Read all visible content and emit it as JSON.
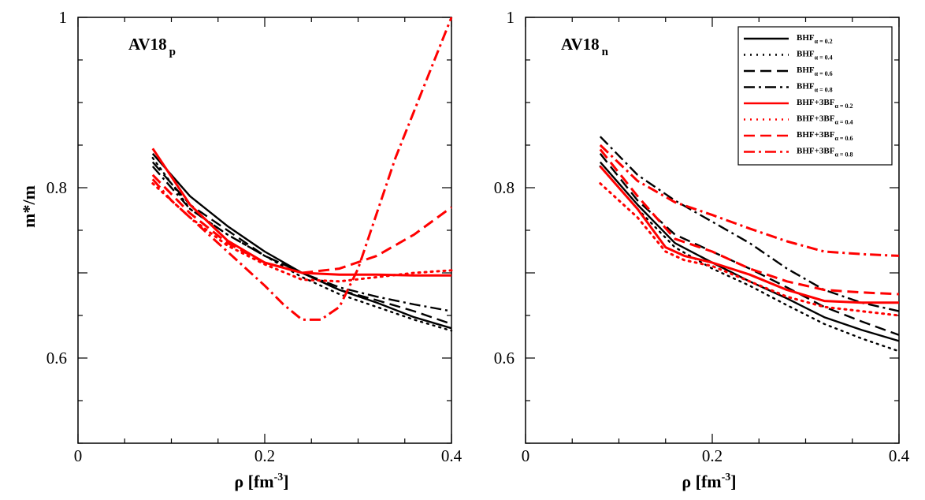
{
  "chart_data": [
    {
      "type": "line",
      "panel": "left",
      "label": "AV18",
      "label_sub": "p",
      "xlabel": "ρ  [fm",
      "xlabel_sup": "-3",
      "xlabel_tail": "]",
      "ylabel": "m*/m",
      "xlim": [
        0,
        0.4
      ],
      "ylim": [
        0.5,
        1.0
      ],
      "xticks": [
        0,
        0.2,
        0.4
      ],
      "xtick_labels": [
        "0",
        "0.2",
        "0.4"
      ],
      "yticks": [
        0.6,
        0.8,
        1.0
      ],
      "ytick_labels": [
        "0.6",
        "0.8",
        "1"
      ],
      "series": [
        {
          "name": "BHF α=0.2",
          "color": "#000000",
          "style": "solid",
          "x": [
            0.08,
            0.12,
            0.16,
            0.2,
            0.24,
            0.28,
            0.32,
            0.36,
            0.4
          ],
          "y": [
            0.84,
            0.79,
            0.755,
            0.725,
            0.7,
            0.68,
            0.665,
            0.648,
            0.635
          ]
        },
        {
          "name": "BHF α=0.4",
          "color": "#000000",
          "style": "dotted",
          "x": [
            0.08,
            0.12,
            0.16,
            0.2,
            0.24,
            0.28,
            0.32,
            0.36,
            0.4
          ],
          "y": [
            0.835,
            0.775,
            0.745,
            0.72,
            0.695,
            0.675,
            0.66,
            0.645,
            0.632
          ]
        },
        {
          "name": "BHF α=0.6",
          "color": "#000000",
          "style": "dashed",
          "x": [
            0.08,
            0.12,
            0.16,
            0.2,
            0.24,
            0.28,
            0.32,
            0.36,
            0.4
          ],
          "y": [
            0.83,
            0.78,
            0.75,
            0.72,
            0.7,
            0.68,
            0.668,
            0.655,
            0.64
          ]
        },
        {
          "name": "BHF α=0.8",
          "color": "#000000",
          "style": "dashdot",
          "x": [
            0.08,
            0.12,
            0.16,
            0.2,
            0.24,
            0.28,
            0.32,
            0.36,
            0.4
          ],
          "y": [
            0.825,
            0.775,
            0.745,
            0.72,
            0.7,
            0.683,
            0.672,
            0.663,
            0.655
          ]
        },
        {
          "name": "BHF+3BF α=0.2",
          "color": "#ff0000",
          "style": "solid",
          "x": [
            0.08,
            0.12,
            0.16,
            0.2,
            0.24,
            0.28,
            0.32,
            0.36,
            0.4
          ],
          "y": [
            0.846,
            0.78,
            0.738,
            0.712,
            0.7,
            0.698,
            0.698,
            0.697,
            0.697
          ]
        },
        {
          "name": "BHF+3BF α=0.4",
          "color": "#ff0000",
          "style": "dotted",
          "x": [
            0.08,
            0.12,
            0.16,
            0.2,
            0.24,
            0.28,
            0.32,
            0.36,
            0.4
          ],
          "y": [
            0.805,
            0.765,
            0.732,
            0.71,
            0.692,
            0.69,
            0.695,
            0.7,
            0.703
          ]
        },
        {
          "name": "BHF+3BF α=0.6",
          "color": "#ff0000",
          "style": "dashed",
          "x": [
            0.08,
            0.12,
            0.16,
            0.2,
            0.24,
            0.28,
            0.32,
            0.36,
            0.4
          ],
          "y": [
            0.815,
            0.77,
            0.735,
            0.712,
            0.7,
            0.705,
            0.72,
            0.745,
            0.777
          ]
        },
        {
          "name": "BHF+3BF α=0.8",
          "color": "#ff0000",
          "style": "dashdot",
          "x": [
            0.08,
            0.1,
            0.12,
            0.14,
            0.16,
            0.18,
            0.2,
            0.22,
            0.24,
            0.26,
            0.28,
            0.3,
            0.32,
            0.34,
            0.36,
            0.38,
            0.4
          ],
          "y": [
            0.81,
            0.785,
            0.765,
            0.745,
            0.725,
            0.705,
            0.685,
            0.663,
            0.645,
            0.645,
            0.66,
            0.705,
            0.77,
            0.835,
            0.89,
            0.945,
            1.0
          ]
        }
      ]
    },
    {
      "type": "line",
      "panel": "right",
      "label": "AV18",
      "label_sub": "n",
      "xlabel": "ρ  [fm",
      "xlabel_sup": "-3",
      "xlabel_tail": "]",
      "ylabel": "",
      "xlim": [
        0,
        0.4
      ],
      "ylim": [
        0.5,
        1.0
      ],
      "xticks": [
        0,
        0.2,
        0.4
      ],
      "xtick_labels": [
        "0",
        "0.2",
        "0.4"
      ],
      "yticks": [
        0.6,
        0.8,
        1.0
      ],
      "ytick_labels": [
        "0.6",
        "0.8",
        "1"
      ],
      "series": [
        {
          "name": "BHF α=0.2",
          "color": "#000000",
          "style": "solid",
          "x": [
            0.08,
            0.12,
            0.16,
            0.2,
            0.24,
            0.28,
            0.32,
            0.36,
            0.4
          ],
          "y": [
            0.83,
            0.78,
            0.735,
            0.712,
            0.69,
            0.67,
            0.648,
            0.633,
            0.62
          ]
        },
        {
          "name": "BHF α=0.4",
          "color": "#000000",
          "style": "dotted",
          "x": [
            0.08,
            0.12,
            0.16,
            0.2,
            0.24,
            0.28,
            0.32,
            0.36,
            0.4
          ],
          "y": [
            0.825,
            0.775,
            0.73,
            0.705,
            0.685,
            0.662,
            0.64,
            0.623,
            0.608
          ]
        },
        {
          "name": "BHF α=0.6",
          "color": "#000000",
          "style": "dashed",
          "x": [
            0.08,
            0.12,
            0.16,
            0.2,
            0.24,
            0.28,
            0.32,
            0.36,
            0.4
          ],
          "y": [
            0.84,
            0.785,
            0.745,
            0.725,
            0.705,
            0.683,
            0.66,
            0.643,
            0.627
          ]
        },
        {
          "name": "BHF α=0.8",
          "color": "#000000",
          "style": "dashdot",
          "x": [
            0.08,
            0.12,
            0.16,
            0.2,
            0.24,
            0.28,
            0.32,
            0.36,
            0.4
          ],
          "y": [
            0.86,
            0.815,
            0.785,
            0.76,
            0.735,
            0.705,
            0.68,
            0.665,
            0.655
          ]
        },
        {
          "name": "BHF+3BF α=0.2",
          "color": "#ff0000",
          "style": "solid",
          "x": [
            0.08,
            0.12,
            0.15,
            0.17,
            0.2,
            0.24,
            0.28,
            0.32,
            0.36,
            0.4
          ],
          "y": [
            0.825,
            0.775,
            0.73,
            0.72,
            0.712,
            0.698,
            0.68,
            0.667,
            0.665,
            0.665
          ]
        },
        {
          "name": "BHF+3BF α=0.4",
          "color": "#ff0000",
          "style": "dotted",
          "x": [
            0.08,
            0.12,
            0.15,
            0.17,
            0.2,
            0.24,
            0.28,
            0.32,
            0.36,
            0.4
          ],
          "y": [
            0.805,
            0.765,
            0.725,
            0.715,
            0.708,
            0.69,
            0.672,
            0.66,
            0.655,
            0.65
          ]
        },
        {
          "name": "BHF+3BF α=0.6",
          "color": "#ff0000",
          "style": "dashed",
          "x": [
            0.08,
            0.12,
            0.16,
            0.2,
            0.24,
            0.28,
            0.32,
            0.36,
            0.4
          ],
          "y": [
            0.845,
            0.79,
            0.74,
            0.725,
            0.705,
            0.69,
            0.68,
            0.677,
            0.675
          ]
        },
        {
          "name": "BHF+3BF α=0.8",
          "color": "#ff0000",
          "style": "dashdot",
          "x": [
            0.08,
            0.12,
            0.16,
            0.2,
            0.24,
            0.28,
            0.32,
            0.36,
            0.4
          ],
          "y": [
            0.85,
            0.808,
            0.783,
            0.768,
            0.752,
            0.737,
            0.725,
            0.722,
            0.72
          ]
        }
      ]
    }
  ],
  "legend": {
    "items": [
      {
        "main": "BHF",
        "sub": "α = 0.2",
        "color": "#000000",
        "style": "solid"
      },
      {
        "main": "BHF",
        "sub": "α = 0.4",
        "color": "#000000",
        "style": "dotted"
      },
      {
        "main": "BHF",
        "sub": "α = 0.6",
        "color": "#000000",
        "style": "dashed"
      },
      {
        "main": "BHF",
        "sub": "α = 0.8",
        "color": "#000000",
        "style": "dashdot"
      },
      {
        "main": "BHF+3BF",
        "sub": "α = 0.2",
        "color": "#ff0000",
        "style": "solid"
      },
      {
        "main": "BHF+3BF",
        "sub": "α = 0.4",
        "color": "#ff0000",
        "style": "dotted"
      },
      {
        "main": "BHF+3BF",
        "sub": "α = 0.6",
        "color": "#ff0000",
        "style": "dashed"
      },
      {
        "main": "BHF+3BF",
        "sub": "α = 0.8",
        "color": "#ff0000",
        "style": "dashdot"
      }
    ]
  }
}
